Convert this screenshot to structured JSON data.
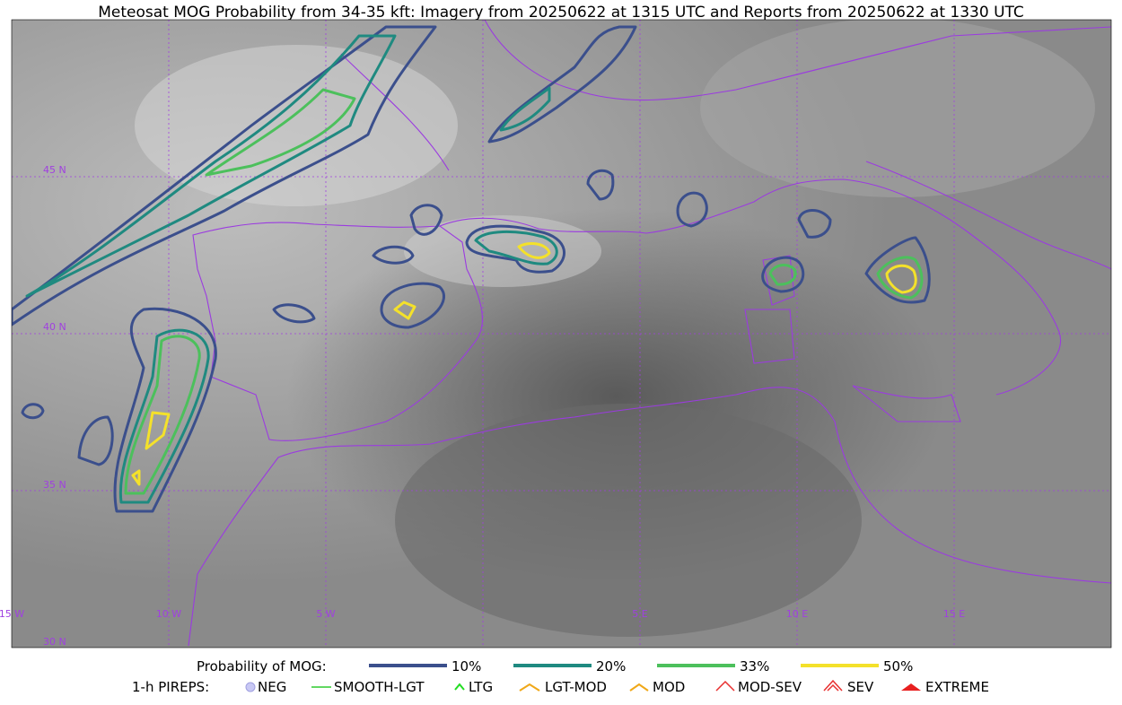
{
  "title": "Meteosat MOG Probability from 34-35 kft: Imagery from 20250622 at 1315 UTC and Reports from 20250622 at 1330 UTC",
  "latitude_labels": [
    "45 N",
    "40 N",
    "35 N",
    "30 N"
  ],
  "longitude_labels": [
    "15 W",
    "10 W",
    "5 W",
    "5 E",
    "10 E",
    "15 E"
  ],
  "probability_legend": {
    "title": "Probability of MOG:",
    "items": [
      {
        "label": "10%",
        "color": "#3b4f8c"
      },
      {
        "label": "20%",
        "color": "#1f8a80"
      },
      {
        "label": "33%",
        "color": "#4cc05c"
      },
      {
        "label": "50%",
        "color": "#f4e12a"
      }
    ]
  },
  "pirep_legend": {
    "title": "1-h PIREPS:",
    "items": [
      "NEG",
      "SMOOTH-LGT",
      "LTG",
      "LGT-MOD",
      "MOD",
      "MOD-SEV",
      "SEV",
      "EXTREME"
    ]
  }
}
